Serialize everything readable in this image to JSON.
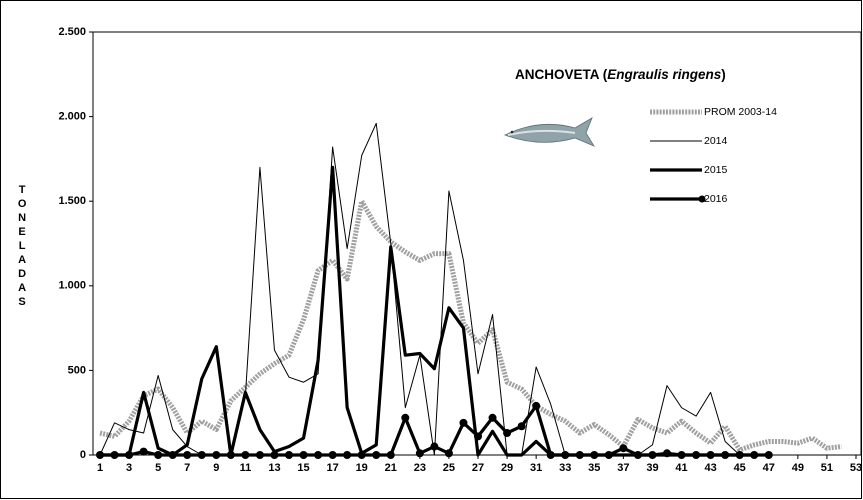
{
  "chart_data": {
    "type": "line",
    "title_parts": [
      "ANCHOVETA  (",
      "Engraulis ringens",
      ")"
    ],
    "ylabel": "TONELADAS",
    "xlim": [
      1,
      53
    ],
    "xticks": [
      1,
      3,
      5,
      7,
      9,
      11,
      13,
      15,
      17,
      19,
      21,
      23,
      25,
      27,
      29,
      31,
      33,
      35,
      37,
      39,
      41,
      43,
      45,
      47,
      49,
      51,
      53
    ],
    "ylim": [
      0,
      2500
    ],
    "yticks": [
      0,
      500,
      {
        "value": 1000,
        "label": "1.000"
      },
      {
        "value": 1500,
        "label": "1.500"
      },
      {
        "value": 2000,
        "label": "2.000"
      },
      {
        "value": 2500,
        "label": "2.500"
      }
    ],
    "x": [
      1,
      2,
      3,
      4,
      5,
      6,
      7,
      8,
      9,
      10,
      11,
      12,
      13,
      14,
      15,
      16,
      17,
      18,
      19,
      20,
      21,
      22,
      23,
      24,
      25,
      26,
      27,
      28,
      29,
      30,
      31,
      32,
      33,
      34,
      35,
      36,
      37,
      38,
      39,
      40,
      41,
      42,
      43,
      44,
      45,
      46,
      47,
      48,
      49,
      50,
      51,
      52,
      53
    ],
    "series": [
      {
        "name": "PROM 2003-14",
        "color": "#a0a0a0",
        "values": [
          130,
          110,
          200,
          350,
          390,
          280,
          130,
          200,
          150,
          320,
          400,
          480,
          540,
          590,
          800,
          1090,
          1150,
          1040,
          1500,
          1350,
          1260,
          1200,
          1150,
          1190,
          1190,
          780,
          660,
          740,
          430,
          390,
          290,
          240,
          200,
          130,
          180,
          120,
          50,
          210,
          160,
          130,
          200,
          130,
          70,
          170,
          30,
          60,
          80,
          80,
          70,
          100,
          40,
          50,
          null
        ]
      },
      {
        "name": "2014",
        "color": "#000000",
        "values": [
          0,
          190,
          150,
          130,
          470,
          150,
          50,
          0,
          0,
          0,
          350,
          1700,
          620,
          460,
          430,
          480,
          1820,
          1220,
          1770,
          1960,
          1250,
          280,
          590,
          0,
          1560,
          1150,
          480,
          830,
          0,
          0,
          520,
          300,
          0,
          0,
          0,
          0,
          0,
          0,
          60,
          410,
          280,
          230,
          370,
          80,
          0,
          0,
          null,
          null,
          null,
          null,
          null,
          null,
          null
        ]
      },
      {
        "name": "2015",
        "color": "#000000",
        "values": [
          0,
          0,
          0,
          370,
          40,
          0,
          60,
          450,
          640,
          0,
          370,
          150,
          20,
          50,
          100,
          560,
          1700,
          280,
          10,
          60,
          1230,
          590,
          600,
          510,
          870,
          750,
          0,
          140,
          0,
          0,
          80,
          0,
          0,
          0,
          0,
          0,
          0,
          0,
          0,
          0,
          0,
          0,
          0,
          0,
          0,
          0,
          null,
          null,
          null,
          null,
          null,
          null,
          null
        ]
      },
      {
        "name": "2016",
        "color": "#000000",
        "values": [
          0,
          0,
          0,
          20,
          0,
          0,
          0,
          0,
          0,
          0,
          0,
          0,
          0,
          0,
          0,
          0,
          0,
          0,
          0,
          0,
          0,
          220,
          10,
          50,
          10,
          190,
          110,
          220,
          130,
          170,
          290,
          0,
          0,
          0,
          0,
          0,
          40,
          0,
          0,
          10,
          0,
          0,
          0,
          0,
          0,
          0,
          0,
          null,
          null,
          null,
          null,
          null,
          null
        ]
      }
    ]
  }
}
